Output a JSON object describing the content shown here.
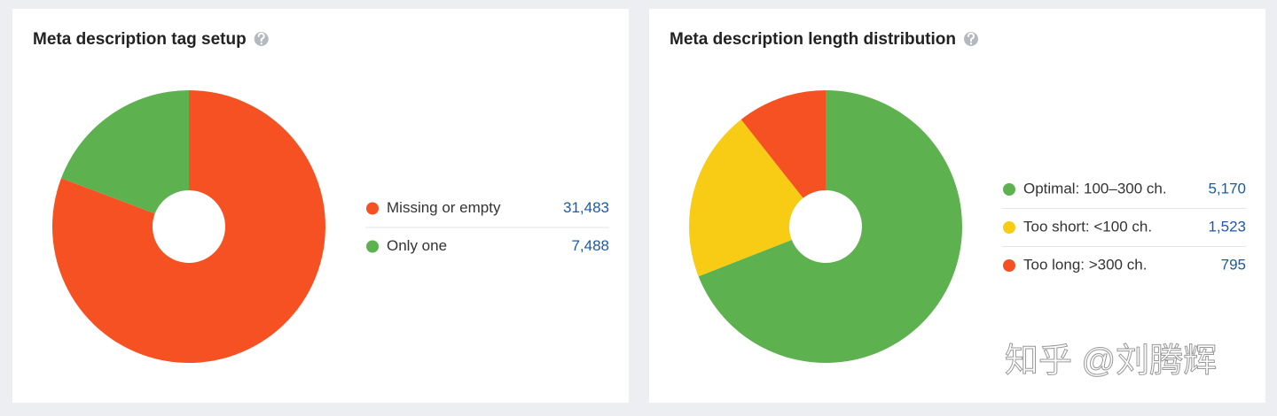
{
  "chart_data": [
    {
      "type": "pie",
      "title": "Meta description tag setup",
      "categories": [
        "Missing or empty",
        "Only one"
      ],
      "values": [
        31483,
        7488
      ],
      "value_labels": [
        "31,483",
        "7,488"
      ],
      "colors": [
        "#f55123",
        "#5db14f"
      ]
    },
    {
      "type": "pie",
      "title": "Meta description length distribution",
      "categories": [
        "Optimal: 100–300 ch.",
        "Too short: <100 ch.",
        "Too long: >300 ch."
      ],
      "values": [
        5170,
        1523,
        795
      ],
      "value_labels": [
        "5,170",
        "1,523",
        "795"
      ],
      "colors": [
        "#5db14f",
        "#f8cc15",
        "#f55123"
      ]
    }
  ],
  "watermark": "知乎 @刘腾辉"
}
